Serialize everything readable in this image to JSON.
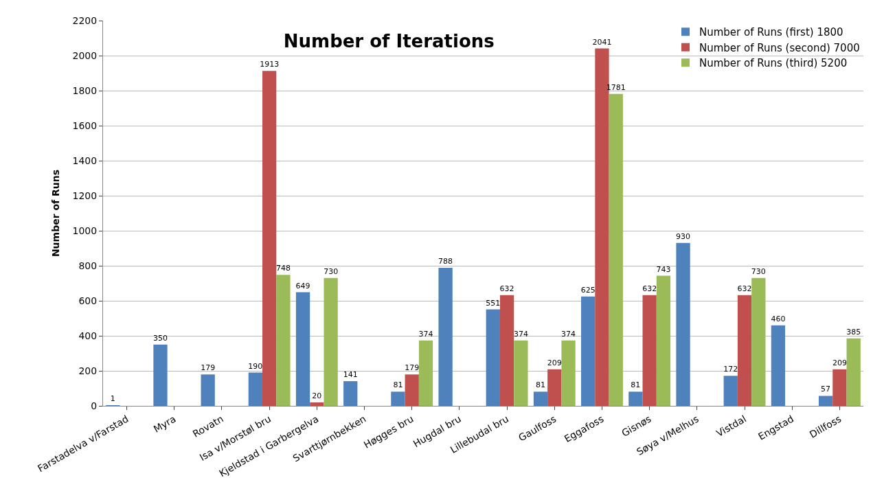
{
  "chart_data": {
    "type": "bar",
    "title": "Number of Iterations",
    "ylabel": "Number of Runs",
    "categories": [
      "Farstadelva v/Farstad",
      "Myra",
      "Rovatn",
      "Isa v/Morstøl bru",
      "Kjeldstad i Garbergelva",
      "Svarttjørnbekken",
      "Høgges bru",
      "Hugdal bru",
      "Lillebudal bru",
      "Gaulfoss",
      "Eggafoss",
      "Gisnøs",
      "Søya v/Melhus",
      "Vistdal",
      "Engstad",
      "Dillfoss"
    ],
    "series": [
      {
        "name": "Number of Runs (first) 1800",
        "color": "#4f81bd",
        "values": [
          1,
          350,
          179,
          190,
          649,
          141,
          81,
          788,
          551,
          81,
          625,
          81,
          930,
          172,
          460,
          57
        ]
      },
      {
        "name": "Number of Runs (second) 7000",
        "color": "#c0504d",
        "values": [
          null,
          null,
          null,
          1913,
          20,
          null,
          179,
          null,
          632,
          209,
          2041,
          632,
          null,
          632,
          null,
          209
        ]
      },
      {
        "name": "Number of Runs (third) 5200",
        "color": "#9bbb59",
        "values": [
          null,
          null,
          null,
          748,
          730,
          null,
          374,
          null,
          374,
          374,
          1781,
          743,
          null,
          730,
          null,
          385
        ]
      }
    ],
    "ylim": [
      0,
      2200
    ],
    "yticks": [
      0,
      200,
      400,
      600,
      800,
      1000,
      1200,
      1400,
      1600,
      1800,
      2000,
      2200
    ],
    "grid": "y",
    "legend": "top right",
    "data_labels": true
  }
}
